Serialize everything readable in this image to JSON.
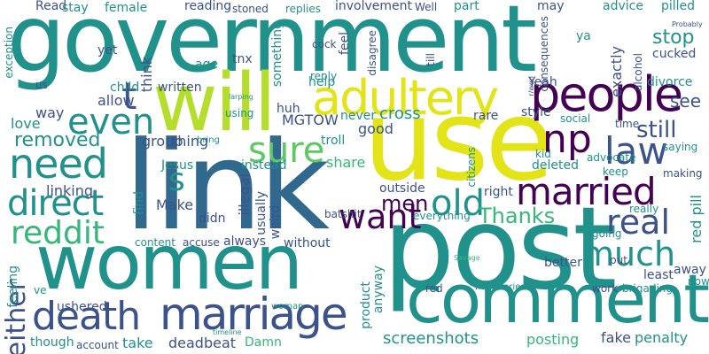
{
  "palette": {
    "purple": "#440154",
    "indigo": "#3b528b",
    "blue": "#31688e",
    "teal": "#21918c",
    "green": "#35b779",
    "lime": "#5ec962",
    "yellow": "#e2e418",
    "ygreen": "#b5de2b"
  },
  "words": [
    {
      "text": "government",
      "color": "teal"
    },
    {
      "text": "link",
      "color": "blue"
    },
    {
      "text": "post",
      "color": "teal"
    },
    {
      "text": "use",
      "color": "yellow"
    },
    {
      "text": "women",
      "color": "teal"
    },
    {
      "text": "will",
      "color": "ygreen"
    },
    {
      "text": "comment",
      "color": "teal"
    },
    {
      "text": "people",
      "color": "purple"
    },
    {
      "text": "adultery",
      "color": "yellow"
    },
    {
      "text": "marriage",
      "color": "indigo"
    },
    {
      "text": "death",
      "color": "indigo"
    },
    {
      "text": "married",
      "color": "purple"
    },
    {
      "text": "need",
      "color": "teal"
    },
    {
      "text": "direct",
      "color": "teal"
    },
    {
      "text": "reddit",
      "color": "green"
    },
    {
      "text": "much",
      "color": "teal"
    },
    {
      "text": "law",
      "color": "indigo"
    },
    {
      "text": "real",
      "color": "indigo"
    },
    {
      "text": "sure",
      "color": "lime"
    },
    {
      "text": "even",
      "color": "teal"
    },
    {
      "text": "np",
      "color": "purple"
    },
    {
      "text": "old",
      "color": "teal"
    },
    {
      "text": "want",
      "color": "purple"
    },
    {
      "text": "men",
      "color": "purple"
    },
    {
      "text": "Thanks",
      "color": "green"
    },
    {
      "text": "either",
      "color": "indigo"
    },
    {
      "text": "still",
      "color": "indigo"
    },
    {
      "text": "removed",
      "color": "teal"
    },
    {
      "text": "stop",
      "color": "teal"
    },
    {
      "text": "see",
      "color": "indigo"
    },
    {
      "text": "s",
      "color": "teal"
    },
    {
      "text": "t",
      "color": "indigo"
    },
    {
      "text": "fake",
      "color": "indigo"
    },
    {
      "text": "penalty",
      "color": "teal"
    },
    {
      "text": "posting",
      "color": "green"
    },
    {
      "text": "screenshots",
      "color": "teal"
    },
    {
      "text": "deadbeat",
      "color": "indigo"
    },
    {
      "text": "take",
      "color": "teal"
    },
    {
      "text": "Damn",
      "color": "green"
    },
    {
      "text": "cross",
      "color": "teal"
    },
    {
      "text": "MGTOW",
      "color": "indigo"
    },
    {
      "text": "help",
      "color": "teal"
    },
    {
      "text": "linking",
      "color": "indigo"
    },
    {
      "text": "group",
      "color": "indigo"
    },
    {
      "text": "thing",
      "color": "indigo"
    },
    {
      "text": "Jesus",
      "color": "teal"
    },
    {
      "text": "instead",
      "color": "teal"
    },
    {
      "text": "share",
      "color": "green"
    },
    {
      "text": "deleted",
      "color": "teal"
    },
    {
      "text": "outside",
      "color": "indigo"
    },
    {
      "text": "right",
      "color": "indigo"
    },
    {
      "text": "batshit",
      "color": "indigo"
    },
    {
      "text": "everything",
      "color": "teal"
    },
    {
      "text": "Make",
      "color": "indigo"
    },
    {
      "text": "didn",
      "color": "indigo"
    },
    {
      "text": "allow",
      "color": "indigo"
    },
    {
      "text": "way",
      "color": "indigo"
    },
    {
      "text": "love",
      "color": "teal"
    },
    {
      "text": "written",
      "color": "indigo"
    },
    {
      "text": "child",
      "color": "teal"
    },
    {
      "text": "yet",
      "color": "indigo"
    },
    {
      "text": "Read",
      "color": "indigo"
    },
    {
      "text": "stay",
      "color": "teal"
    },
    {
      "text": "female",
      "color": "teal"
    },
    {
      "text": "reading",
      "color": "indigo"
    },
    {
      "text": "stoned",
      "color": "indigo"
    },
    {
      "text": "replies",
      "color": "teal"
    },
    {
      "text": "involvement",
      "color": "indigo"
    },
    {
      "text": "Well",
      "color": "indigo"
    },
    {
      "text": "part",
      "color": "teal"
    },
    {
      "text": "may",
      "color": "indigo"
    },
    {
      "text": "advice",
      "color": "teal"
    },
    {
      "text": "pilled",
      "color": "teal"
    },
    {
      "text": "cucked",
      "color": "indigo"
    },
    {
      "text": "ya",
      "color": "teal"
    },
    {
      "text": "exactly",
      "color": "indigo"
    },
    {
      "text": "divorce",
      "color": "teal"
    },
    {
      "text": "Yeah",
      "color": "indigo"
    },
    {
      "text": "style",
      "color": "indigo"
    },
    {
      "text": "social",
      "color": "teal"
    },
    {
      "text": "time",
      "color": "indigo"
    },
    {
      "text": "saying",
      "color": "teal"
    },
    {
      "text": "kid",
      "color": "teal"
    },
    {
      "text": "keep",
      "color": "teal"
    },
    {
      "text": "making",
      "color": "indigo"
    },
    {
      "text": "red pill",
      "color": "teal"
    },
    {
      "text": "going",
      "color": "teal"
    },
    {
      "text": "really",
      "color": "teal"
    },
    {
      "text": "put",
      "color": "indigo"
    },
    {
      "text": "better",
      "color": "indigo"
    },
    {
      "text": "work",
      "color": "indigo"
    },
    {
      "text": "least",
      "color": "indigo"
    },
    {
      "text": "away",
      "color": "indigo"
    },
    {
      "text": "now",
      "color": "teal"
    },
    {
      "text": "brigading",
      "color": "teal"
    },
    {
      "text": "nsfwstories",
      "color": "teal"
    },
    {
      "text": "red",
      "color": "indigo"
    },
    {
      "text": "product",
      "color": "teal"
    },
    {
      "text": "anyway",
      "color": "teal"
    },
    {
      "text": "without",
      "color": "indigo"
    },
    {
      "text": "always",
      "color": "indigo"
    },
    {
      "text": "accuse",
      "color": "indigo"
    },
    {
      "text": "content",
      "color": "teal"
    },
    {
      "text": "weird",
      "color": "indigo"
    },
    {
      "text": "illegal",
      "color": "indigo"
    },
    {
      "text": "usually",
      "color": "indigo"
    },
    {
      "text": "find",
      "color": "teal"
    },
    {
      "text": "feeling",
      "color": "teal"
    },
    {
      "text": "ushered",
      "color": "indigo"
    },
    {
      "text": "though",
      "color": "teal"
    },
    {
      "text": "account",
      "color": "indigo"
    },
    {
      "text": "woman",
      "color": "teal"
    },
    {
      "text": "good",
      "color": "indigo"
    },
    {
      "text": "never",
      "color": "teal"
    },
    {
      "text": "troll",
      "color": "teal"
    },
    {
      "text": "rare",
      "color": "indigo"
    },
    {
      "text": "huh",
      "color": "indigo"
    },
    {
      "text": "think",
      "color": "indigo"
    },
    {
      "text": "something",
      "color": "teal"
    },
    {
      "text": "tnx",
      "color": "indigo"
    },
    {
      "text": "reply",
      "color": "teal"
    },
    {
      "text": "disagree",
      "color": "indigo"
    },
    {
      "text": "citizens",
      "color": "teal"
    },
    {
      "text": "consequences",
      "color": "indigo"
    },
    {
      "text": "alcohol",
      "color": "indigo"
    },
    {
      "text": "till",
      "color": "indigo"
    },
    {
      "text": "feel",
      "color": "indigo"
    },
    {
      "text": "cock",
      "color": "indigo"
    },
    {
      "text": "age",
      "color": "teal"
    },
    {
      "text": "using",
      "color": "teal"
    },
    {
      "text": "bring",
      "color": "teal"
    },
    {
      "text": "advocate",
      "color": "teal"
    },
    {
      "text": "us",
      "color": "indigo"
    },
    {
      "text": "exception",
      "color": "teal"
    },
    {
      "text": "Savage",
      "color": "green"
    },
    {
      "text": "timeline",
      "color": "teal"
    },
    {
      "text": "larping",
      "color": "teal"
    },
    {
      "text": "r/wgn",
      "color": "indigo"
    },
    {
      "text": "ve",
      "color": "teal"
    },
    {
      "text": "Probably",
      "color": "indigo"
    }
  ]
}
